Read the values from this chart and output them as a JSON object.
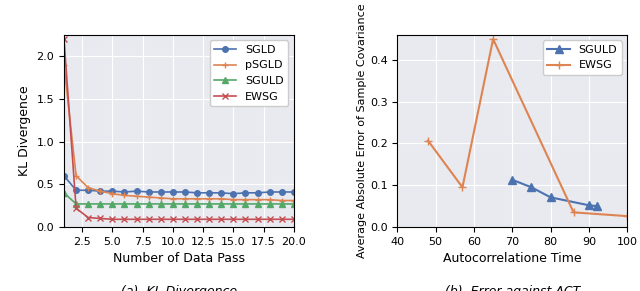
{
  "plot1": {
    "xlabel": "Number of Data Pass",
    "ylabel": "KL Divergence",
    "caption": "(a)  KL Divergence",
    "xlim": [
      1,
      20
    ],
    "ylim": [
      0,
      2.25
    ],
    "xticks": [
      2.5,
      5.0,
      7.5,
      10.0,
      12.5,
      15.0,
      17.5,
      20.0
    ],
    "series": {
      "SGLD": {
        "color": "#4c72b0",
        "marker": "o",
        "markersize": 4,
        "x": [
          1,
          2,
          3,
          4,
          5,
          6,
          7,
          8,
          9,
          10,
          11,
          12,
          13,
          14,
          15,
          16,
          17,
          18,
          19,
          20
        ],
        "y": [
          0.6,
          0.43,
          0.43,
          0.42,
          0.42,
          0.41,
          0.42,
          0.41,
          0.41,
          0.41,
          0.41,
          0.4,
          0.4,
          0.4,
          0.39,
          0.4,
          0.4,
          0.41,
          0.41,
          0.41
        ]
      },
      "pSGLD": {
        "color": "#dd8452",
        "marker": "+",
        "markersize": 5,
        "x": [
          1,
          2,
          3,
          4,
          5,
          6,
          7,
          8,
          9,
          10,
          11,
          12,
          13,
          14,
          15,
          16,
          17,
          18,
          19,
          20
        ],
        "y": [
          1.9,
          0.6,
          0.46,
          0.42,
          0.39,
          0.37,
          0.36,
          0.35,
          0.34,
          0.33,
          0.33,
          0.33,
          0.33,
          0.33,
          0.32,
          0.32,
          0.32,
          0.32,
          0.31,
          0.31
        ]
      },
      "SGULD": {
        "color": "#55a868",
        "marker": "^",
        "markersize": 4,
        "x": [
          1,
          2,
          3,
          4,
          5,
          6,
          7,
          8,
          9,
          10,
          11,
          12,
          13,
          14,
          15,
          16,
          17,
          18,
          19,
          20
        ],
        "y": [
          0.4,
          0.27,
          0.27,
          0.27,
          0.27,
          0.27,
          0.27,
          0.27,
          0.27,
          0.27,
          0.27,
          0.27,
          0.27,
          0.27,
          0.27,
          0.27,
          0.27,
          0.27,
          0.27,
          0.27
        ]
      },
      "EWSG": {
        "color": "#c44e52",
        "marker": "x",
        "markersize": 4,
        "x": [
          1,
          2,
          3,
          4,
          5,
          6,
          7,
          8,
          9,
          10,
          11,
          12,
          13,
          14,
          15,
          16,
          17,
          18,
          19,
          20
        ],
        "y": [
          2.2,
          0.22,
          0.11,
          0.1,
          0.09,
          0.09,
          0.09,
          0.09,
          0.09,
          0.09,
          0.09,
          0.09,
          0.09,
          0.09,
          0.09,
          0.09,
          0.09,
          0.09,
          0.09,
          0.09
        ]
      }
    }
  },
  "plot2": {
    "xlabel": "Autocorrelatione Time",
    "ylabel": "Average Absolute Error of Sample Covariance",
    "caption": "(b)  Error against ACT",
    "xlim": [
      40,
      100
    ],
    "ylim": [
      0.0,
      0.46
    ],
    "xticks": [
      40,
      50,
      60,
      70,
      80,
      90,
      100
    ],
    "series": {
      "SGULD": {
        "color": "#4c72b0",
        "marker": "^",
        "markersize": 6,
        "x": [
          70,
          75,
          80,
          90,
          92
        ],
        "y": [
          0.113,
          0.095,
          0.071,
          0.052,
          0.05
        ]
      },
      "EWSG": {
        "color": "#dd8452",
        "marker": "+",
        "markersize": 6,
        "x": [
          48,
          57,
          70,
          86,
          100
        ],
        "y": [
          0.207,
          0.095,
          0.45,
          0.035,
          0.026
        ]
      }
    }
  },
  "bg_color": "#e8eaf0",
  "figure_bg": "#ffffff"
}
